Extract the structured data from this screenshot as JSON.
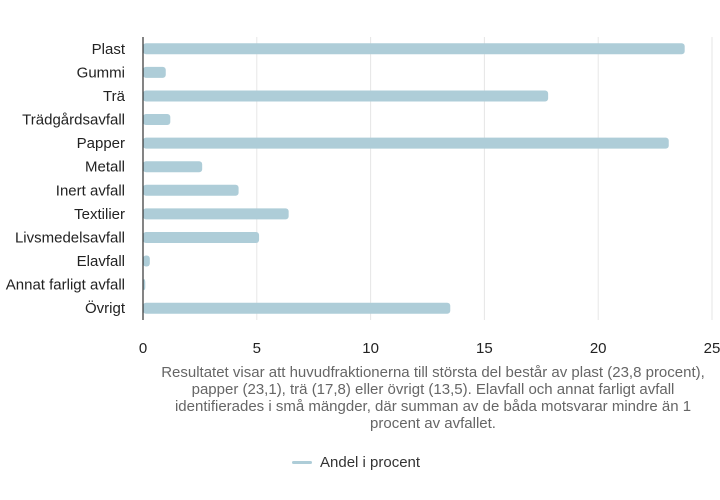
{
  "chart_data": {
    "type": "bar",
    "orientation": "horizontal",
    "categories": [
      "Plast",
      "Gummi",
      "Trä",
      "Trädgårdsavfall",
      "Papper",
      "Metall",
      "Inert avfall",
      "Textilier",
      "Livsmedelsavfall",
      "Elavfall",
      "Annat farligt avfall",
      "Övrigt"
    ],
    "series": [
      {
        "name": "Andel i procent",
        "values": [
          23.8,
          1.0,
          17.8,
          1.2,
          23.1,
          2.6,
          4.2,
          6.4,
          5.1,
          0.3,
          0.1,
          13.5
        ]
      }
    ],
    "xlim": [
      0,
      25
    ],
    "xticks": [
      "0",
      "5",
      "10",
      "15",
      "20",
      "25"
    ],
    "grid": "vertical",
    "legend_position": "bottom",
    "caption": "Resultatet visar att huvudfraktionerna till största del består av plast (23,8 procent), papper (23,1), trä (17,8) eller övrigt (13,5). Elavfall och annat farligt avfall identifierades i små mängder, där summan av de båda motsvarar mindre än 1 procent av avfallet.",
    "colors": {
      "bar": "#aecdd8",
      "grid": "#e6e6e6",
      "axis": "#333333"
    }
  }
}
